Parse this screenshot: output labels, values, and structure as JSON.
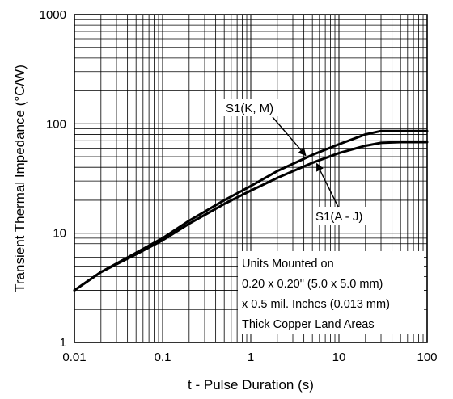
{
  "chart_data": {
    "type": "line",
    "title": "",
    "xlabel": "t - Pulse Duration (s)",
    "ylabel": "Transient Thermal Impedance (°C/W)",
    "xscale": "log",
    "yscale": "log",
    "xlim": [
      0.01,
      100
    ],
    "ylim": [
      1,
      1000
    ],
    "grid": true,
    "x_tick_labels": [
      "0.01",
      "0.1",
      "1",
      "10",
      "100"
    ],
    "y_tick_labels": [
      "1",
      "10",
      "100",
      "1000"
    ],
    "series": [
      {
        "name": "S1(K, M)",
        "x": [
          0.01,
          0.02,
          0.05,
          0.1,
          0.2,
          0.5,
          1,
          2,
          5,
          10,
          20,
          30,
          50,
          100
        ],
        "y": [
          3.0,
          4.4,
          6.6,
          9.0,
          13.0,
          20.0,
          27.0,
          37.0,
          52.0,
          65.0,
          80.0,
          86.0,
          86.0,
          86.0
        ]
      },
      {
        "name": "S1(A - J)",
        "x": [
          0.01,
          0.02,
          0.05,
          0.1,
          0.2,
          0.5,
          1,
          2,
          5,
          10,
          20,
          30,
          50,
          100
        ],
        "y": [
          3.0,
          4.4,
          6.4,
          8.6,
          12.2,
          18.5,
          24.5,
          32.0,
          44.0,
          54.0,
          63.0,
          67.0,
          68.0,
          68.0
        ]
      }
    ],
    "annotations": [
      {
        "text": "S1(K, M)",
        "points_to_series": "S1(K, M)"
      },
      {
        "text": "S1(A - J)",
        "points_to_series": "S1(A - J)"
      }
    ],
    "note_lines": [
      "Units Mounted on",
      "0.20 x 0.20\" (5.0 x 5.0 mm)",
      "x 0.5 mil. Inches (0.013 mm)",
      "Thick Copper Land Areas"
    ],
    "line_color": "#000000"
  }
}
